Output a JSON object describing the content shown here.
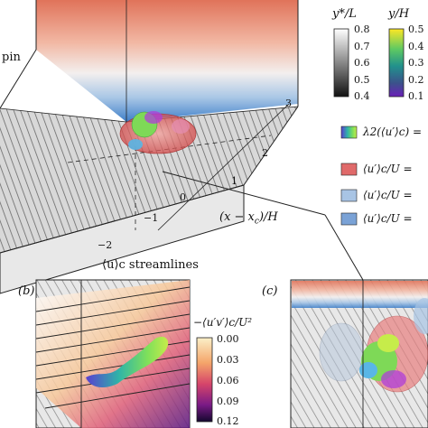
{
  "figure": {
    "panel_a": {
      "fragment_label": "pin",
      "axis_label": "(x − x",
      "axis_label_sub": "c",
      "axis_label_tail": ")/H",
      "ticks": [
        "3",
        "2",
        "1",
        "0",
        "−1",
        "−2"
      ]
    },
    "colorbars": {
      "gray": {
        "title": "y*/L",
        "ticks": [
          "0.8",
          "0.7",
          "0.6",
          "0.5",
          "0.4"
        ]
      },
      "color": {
        "title": "y/H",
        "ticks": [
          "0.5",
          "0.4",
          "0.3",
          "0.2",
          "0.1"
        ]
      }
    },
    "legend": {
      "lambda_label": "λ2(⟨u′⟩c) =",
      "items": [
        {
          "label": "⟨u′⟩c/U =",
          "color": "#e06a6a"
        },
        {
          "label": "⟨u′⟩c/U =",
          "color": "#a8c4e4"
        },
        {
          "label": "⟨u′⟩c/U =",
          "color": "#7aa2d6"
        }
      ]
    },
    "panel_b": {
      "tag": "(b)",
      "streamlines_label": "⟨u⟩c streamlines",
      "colorbar_title": "−⟨u′v′⟩c/U²",
      "colorbar_ticks": [
        "0.00",
        "0.03",
        "0.06",
        "0.09",
        "0.12"
      ]
    },
    "panel_c": {
      "tag": "(c)"
    }
  }
}
